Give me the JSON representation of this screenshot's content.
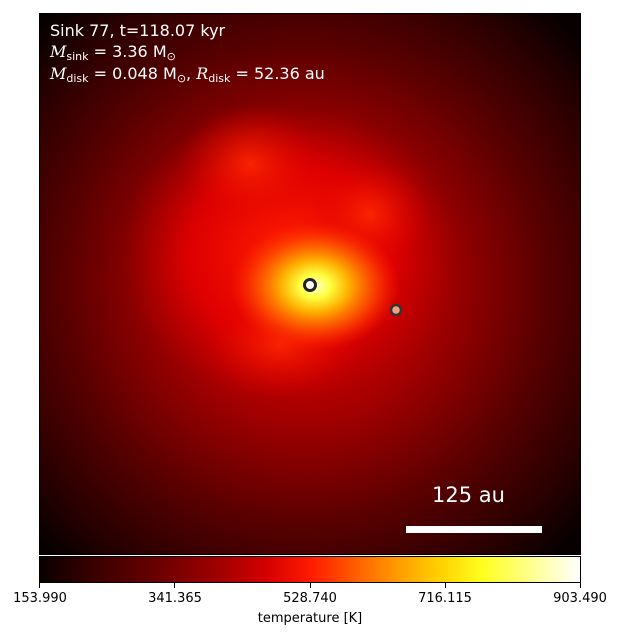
{
  "annotation": {
    "line1": "Sink 77, t=118.07 kyr",
    "m_sink_symbol": "M",
    "m_sink_sub": "sink",
    "m_sink_value": " = 3.36 M",
    "m_sink_unit_sub": "⊙",
    "m_disk_symbol": "M",
    "m_disk_sub": "disk",
    "m_disk_value": " = 0.048 M",
    "m_disk_unit_sub": "⊙",
    "r_disk_sep": ", ",
    "r_disk_symbol": "R",
    "r_disk_sub": "disk",
    "r_disk_value": " = 52.36 au"
  },
  "scale_bar": {
    "label": "125 au"
  },
  "colorbar": {
    "label": "temperature [K]",
    "colormap": "hot",
    "range": [
      153.99,
      903.49
    ],
    "ticks": [
      "153.990",
      "341.365",
      "528.740",
      "716.115",
      "903.490"
    ]
  },
  "sinks": [
    {
      "name": "primary-sink",
      "fill": "#ffffff",
      "stroke": "#222222"
    },
    {
      "name": "secondary-sink",
      "fill": "#f4a080",
      "stroke": "#333333"
    }
  ]
}
